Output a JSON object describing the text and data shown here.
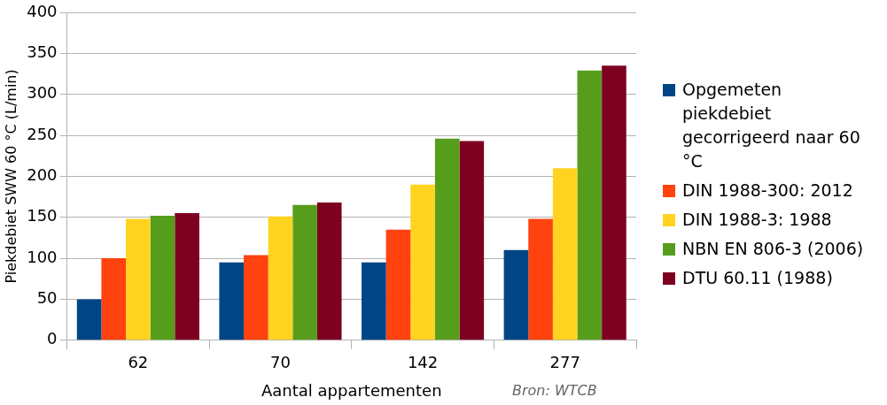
{
  "chart_data": {
    "type": "bar",
    "xlabel": "Aantal appartementen",
    "ylabel": "Piekdebiet SWW 60 °C (L/min)",
    "categories": [
      "62",
      "70",
      "142",
      "277"
    ],
    "series": [
      {
        "name": "Opgemeten piekdebiet gecorrigeerd naar 60 °C",
        "color": "#004586",
        "values": [
          50,
          95,
          95,
          110
        ]
      },
      {
        "name": "DIN 1988-300: 2012",
        "color": "#ff420e",
        "values": [
          100,
          104,
          135,
          148
        ]
      },
      {
        "name": "DIN 1988-3: 1988",
        "color": "#ffd320",
        "values": [
          148,
          151,
          190,
          210
        ]
      },
      {
        "name": "NBN EN 806-3 (2006)",
        "color": "#579d1c",
        "values": [
          152,
          165,
          246,
          329
        ]
      },
      {
        "name": "DTU 60.11 (1988)",
        "color": "#7e0021",
        "values": [
          155,
          168,
          243,
          335
        ]
      }
    ],
    "ylim": [
      0,
      400
    ],
    "yticks": [
      0,
      50,
      100,
      150,
      200,
      250,
      300,
      350,
      400
    ],
    "grid": "y",
    "legend": "right",
    "annotations": [
      "Bron: WTCB"
    ]
  }
}
